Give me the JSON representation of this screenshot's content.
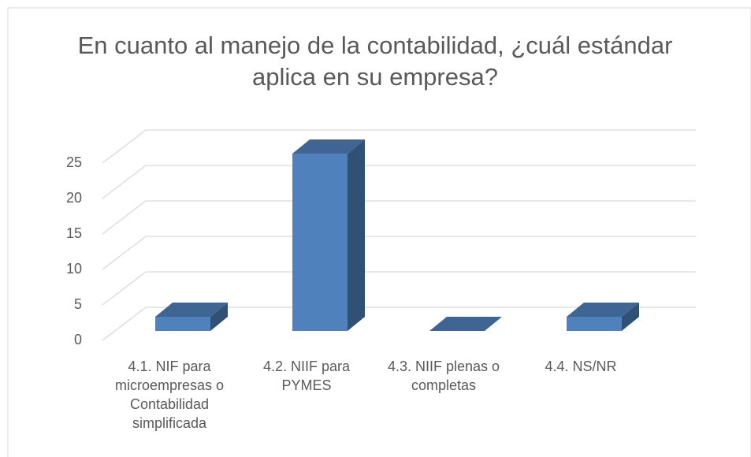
{
  "chart_data": {
    "type": "bar3d",
    "title": "En cuanto al manejo de la contabilidad, ¿cuál estándar aplica en su empresa?",
    "categories": [
      "4.1. NIF para microempresas o Contabilidad simplificada",
      "4.2. NIIF para PYMES",
      "4.3. NIIF plenas o completas",
      "4.4. NS/NR"
    ],
    "values": [
      2,
      25,
      0,
      2
    ],
    "color": "#4f81bd",
    "ylim": [
      0,
      25
    ],
    "yticks": [
      0,
      5,
      10,
      15,
      20,
      25
    ],
    "grid": true
  }
}
